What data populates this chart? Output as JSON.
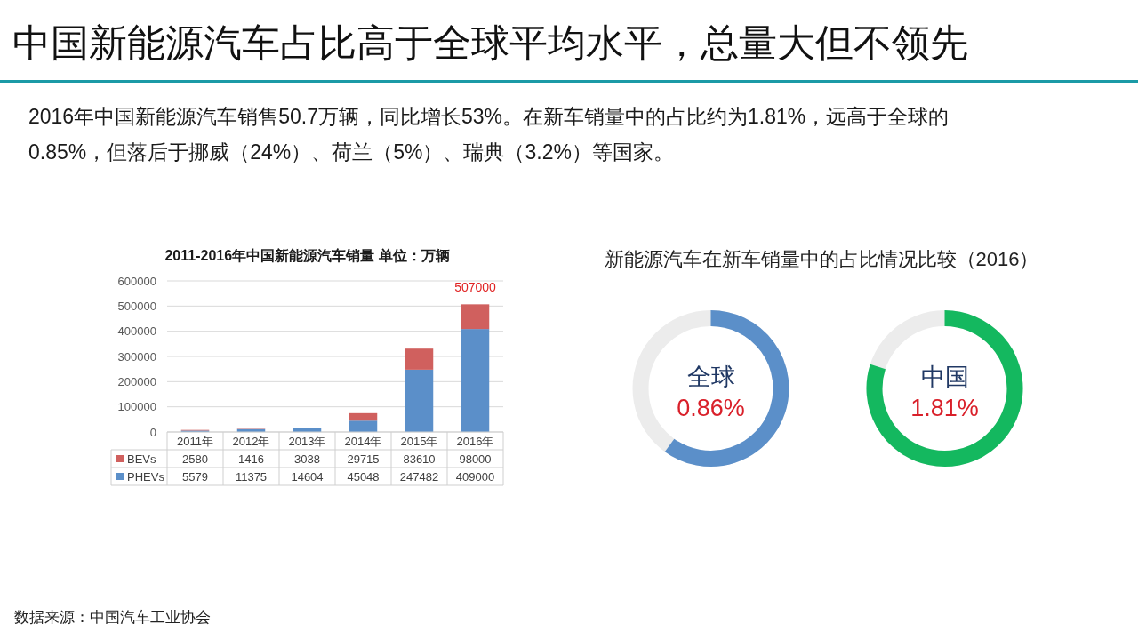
{
  "chart_data": [
    {
      "type": "other",
      "title": "中国新能源汽车占比高于全球平均水平，总量大但不领先",
      "subtitle": "2016年中国新能源汽车销售50.7万辆，同比增长53%。在新车销量中的占比约为1.81%，远高于全球的0.85%，但落后于挪威（24%）、荷兰（5%）、瑞典（3.2%）等国家。"
    },
    {
      "type": "bar",
      "title": "2011-2016年中国新能源汽车销量 单位：万辆",
      "categories": [
        "2011年",
        "2012年",
        "2013年",
        "2014年",
        "2015年",
        "2016年"
      ],
      "stacked": true,
      "series": [
        {
          "name": "PHEVs",
          "color": "#5b8fc9",
          "values": [
            5579,
            11375,
            14604,
            45048,
            247482,
            409000
          ]
        },
        {
          "name": "BEVs",
          "color": "#d0605e",
          "values": [
            2580,
            1416,
            3038,
            29715,
            83610,
            98000
          ]
        }
      ],
      "ylim": [
        0,
        600000
      ],
      "yticks": [
        0,
        100000,
        200000,
        300000,
        400000,
        500000,
        600000
      ],
      "grid": "y",
      "legend": "bottom",
      "data_labels": true,
      "totals": [
        null,
        null,
        null,
        null,
        null,
        "507000"
      ]
    },
    {
      "type": "other",
      "title": "新能源汽车在新车销量中的占比情况比较（2016）",
      "categories": [
        "全球",
        "中国"
      ],
      "value_labels": [
        "0.86%",
        "1.81%"
      ],
      "colors": [
        "#5b8fc9",
        "#14b85f"
      ]
    },
    {
      "type": "other",
      "annotations": [
        "数据来源：中国汽车工业协会"
      ]
    }
  ]
}
